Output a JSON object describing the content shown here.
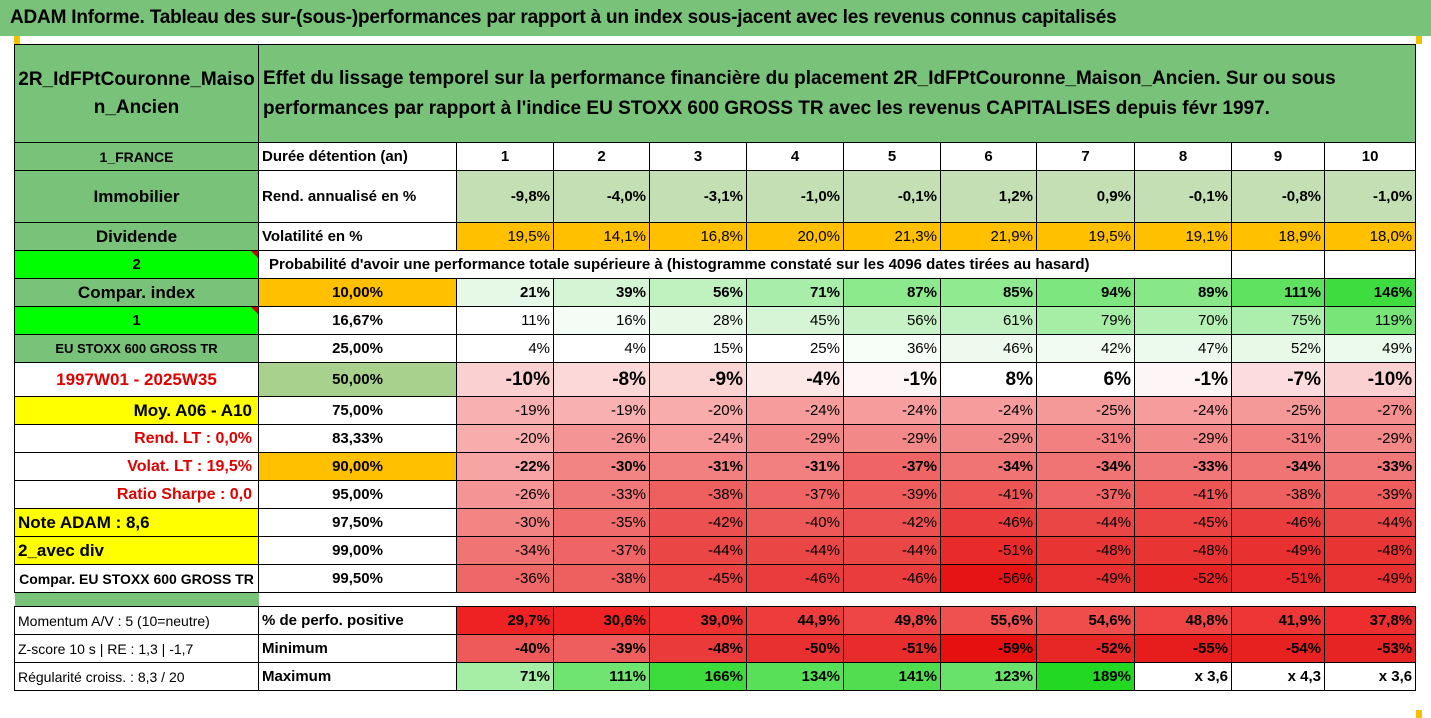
{
  "banner": "ADAM Informe. Tableau des sur-(sous-)performances par rapport à un index sous-jacent avec les revenus connus capitalisés",
  "fund_name": "2R_IdFPtCouronne_Maiso\nn_Ancien",
  "description": "Effet du lissage temporel sur la performance financière du placement 2R_IdFPtCouronne_Maison_Ancien. Sur ou sous performances par rapport à l'indice EU STOXX 600 GROSS TR avec les revenus CAPITALISES depuis févr 1997.",
  "left_labels": {
    "country": "1_FRANCE",
    "category": "Immobilier",
    "dividend": "Dividende",
    "two": "2",
    "compar_index": "Compar. index",
    "one": "1",
    "index_name": "EU STOXX 600 GROSS TR",
    "period": "1997W01 - 2025W35",
    "moy": "Moy. A06 - A10",
    "rend_lt": "Rend. LT :   0,0%",
    "volat_lt": "Volat. LT :   19,5%",
    "sharpe": "Ratio Sharpe :   0,0",
    "note": "Note ADAM : 8,6",
    "avec_div": "2_avec div",
    "compar_long": "Compar. EU STOXX 600 GROSS TR",
    "momentum": "Momentum A/V : 5 (10=neutre)",
    "zscore": "Z-score 10 s  |  RE : 1,3  |  -1,7",
    "regularite": "Régularité croiss. : 8,3 / 20"
  },
  "row_labels": {
    "duree": "Durée détention (an)",
    "rend": "Rend. annualisé en %",
    "vol": "Volatilité en %",
    "proba": "Probabilité d'avoir une performance totale supérieure à (histogramme constaté sur les 4096 dates tirées au hasard)",
    "pct_pos": "% de perfo. positive",
    "minimum": "Minimum",
    "maximum": "Maximum"
  },
  "years": [
    "1",
    "2",
    "3",
    "4",
    "5",
    "6",
    "7",
    "8",
    "9",
    "10"
  ],
  "rend": [
    "-9,8%",
    "-4,0%",
    "-3,1%",
    "-1,0%",
    "-0,1%",
    "1,2%",
    "0,9%",
    "-0,1%",
    "-0,8%",
    "-1,0%"
  ],
  "vol": [
    "19,5%",
    "14,1%",
    "16,8%",
    "20,0%",
    "21,3%",
    "21,9%",
    "19,5%",
    "19,1%",
    "18,9%",
    "18,0%"
  ],
  "percentiles": [
    {
      "p": "10,00%",
      "vals": [
        "21%",
        "39%",
        "56%",
        "71%",
        "87%",
        "85%",
        "94%",
        "89%",
        "111%",
        "146%"
      ],
      "colors": [
        "#e6f8e6",
        "#d4f5d4",
        "#c0f2c0",
        "#a8eea8",
        "#8ce98c",
        "#90ea90",
        "#7ee67e",
        "#88e888",
        "#5fe25f",
        "#3fdc3f"
      ]
    },
    {
      "p": "16,67%",
      "vals": [
        "11%",
        "16%",
        "28%",
        "45%",
        "56%",
        "61%",
        "79%",
        "70%",
        "75%",
        "119%"
      ],
      "colors": [
        "#ffffff",
        "#f5fcf5",
        "#e8f9e8",
        "#d6f5d6",
        "#c6f2c6",
        "#c0f1c0",
        "#a6ed a6",
        "#b4efb4",
        "#aceeac",
        "#78e578"
      ]
    },
    {
      "p": "25,00%",
      "vals": [
        "4%",
        "4%",
        "15%",
        "25%",
        "36%",
        "46%",
        "42%",
        "47%",
        "52%",
        "49%"
      ],
      "colors": [
        "#ffffff",
        "#ffffff",
        "#ffffff",
        "#ffffff",
        "#f7fdf7",
        "#eefaee",
        "#f1fbf1",
        "#ecfaec",
        "#e8f9e8",
        "#ebfaeb"
      ]
    },
    {
      "p": "50,00%",
      "vals": [
        "-10%",
        "-8%",
        "-9%",
        "-4%",
        "-1%",
        "8%",
        "6%",
        "-1%",
        "-7%",
        "-10%"
      ],
      "colors": [
        "#fbd0d0",
        "#fcd8d8",
        "#fbd4d4",
        "#fde8e8",
        "#fef6f6",
        "#ffffff",
        "#ffffff",
        "#fef6f6",
        "#fcdcdc",
        "#fbd0d0"
      ]
    },
    {
      "p": "75,00%",
      "vals": [
        "-19%",
        "-19%",
        "-20%",
        "-24%",
        "-24%",
        "-24%",
        "-25%",
        "-24%",
        "-25%",
        "-27%"
      ],
      "colors": [
        "#f8b0b0",
        "#f8b0b0",
        "#f8acac",
        "#f69c9c",
        "#f69c9c",
        "#f69c9c",
        "#f59898",
        "#f69c9c",
        "#f59898",
        "#f49090"
      ]
    },
    {
      "p": "83,33%",
      "vals": [
        "-20%",
        "-26%",
        "-24%",
        "-29%",
        "-29%",
        "-29%",
        "-31%",
        "-29%",
        "-31%",
        "-29%"
      ],
      "colors": [
        "#f8acac",
        "#f59494",
        "#f69c9c",
        "#f38888",
        "#f38888",
        "#f38888",
        "#f28080",
        "#f38888",
        "#f28080",
        "#f38888"
      ]
    },
    {
      "p": "90,00%",
      "vals": [
        "-22%",
        "-30%",
        "-31%",
        "-31%",
        "-37%",
        "-34%",
        "-34%",
        "-33%",
        "-34%",
        "-33%"
      ],
      "colors": [
        "#f7a4a4",
        "#f28484",
        "#f28080",
        "#f28080",
        "#ef6464",
        "#f07474",
        "#f07474",
        "#f17878",
        "#f07474",
        "#f17878"
      ]
    },
    {
      "p": "95,00%",
      "vals": [
        "-26%",
        "-33%",
        "-38%",
        "-37%",
        "-39%",
        "-41%",
        "-37%",
        "-41%",
        "-38%",
        "-39%"
      ],
      "colors": [
        "#f59494",
        "#f17878",
        "#ee6060",
        "#ef6464",
        "#ee5c5c",
        "#ed5454",
        "#ef6464",
        "#ed5454",
        "#ee6060",
        "#ee5c5c"
      ]
    },
    {
      "p": "97,50%",
      "vals": [
        "-30%",
        "-35%",
        "-42%",
        "-40%",
        "-42%",
        "-46%",
        "-44%",
        "-45%",
        "-46%",
        "-44%"
      ],
      "colors": [
        "#f28484",
        "#f06c6c",
        "#ec5050",
        "#ed5858",
        "#ec5050",
        "#ea3c3c",
        "#eb4646",
        "#eb4242",
        "#ea3c3c",
        "#eb4646"
      ]
    },
    {
      "p": "99,00%",
      "vals": [
        "-34%",
        "-37%",
        "-44%",
        "-44%",
        "-44%",
        "-51%",
        "-48%",
        "-48%",
        "-49%",
        "-48%"
      ],
      "colors": [
        "#f07474",
        "#ef6464",
        "#eb4646",
        "#eb4646",
        "#eb4646",
        "#e82a2a",
        "#e93434",
        "#e93434",
        "#e83030",
        "#e93434"
      ]
    },
    {
      "p": "99,50%",
      "vals": [
        "-36%",
        "-38%",
        "-45%",
        "-46%",
        "-46%",
        "-56%",
        "-49%",
        "-52%",
        "-51%",
        "-49%"
      ],
      "colors": [
        "#ef6868",
        "#ee6060",
        "#eb4242",
        "#ea3c3c",
        "#ea3c3c",
        "#e61414",
        "#e83030",
        "#e72424",
        "#e82a2a",
        "#e83030"
      ]
    }
  ],
  "pct_pos": [
    "29,7%",
    "30,6%",
    "39,0%",
    "44,9%",
    "49,8%",
    "55,6%",
    "54,6%",
    "48,8%",
    "41,9%",
    "37,8%"
  ],
  "minimum": [
    "-40%",
    "-39%",
    "-48%",
    "-50%",
    "-51%",
    "-59%",
    "-52%",
    "-55%",
    "-54%",
    "-53%"
  ],
  "maximum": [
    "71%",
    "111%",
    "166%",
    "134%",
    "141%",
    "123%",
    "189%",
    "x 3,6",
    "x 4,3",
    "x 3,6"
  ],
  "colors": {
    "green": "#79c27a",
    "orange": "#ffc000",
    "bright_green": "#00ff00",
    "yellow": "#ffff00",
    "red": "#e00000"
  }
}
